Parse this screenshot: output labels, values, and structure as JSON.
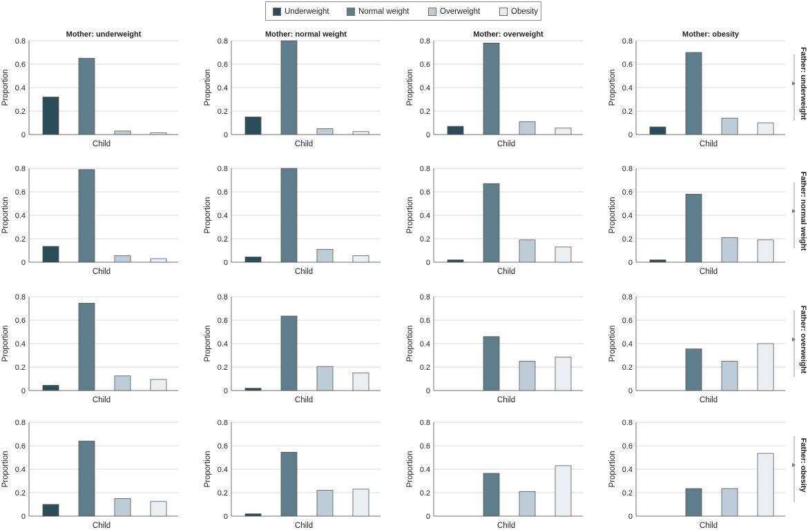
{
  "chart_data": {
    "type": "bar",
    "layout": "4x4 small multiples",
    "categories": [
      "Underweight",
      "Normal weight",
      "Overweight",
      "Obesity"
    ],
    "colors": {
      "Underweight": "#2b4c5b",
      "Normal weight": "#5f7e8c",
      "Overweight": "#bccdd7",
      "Obesity": "#e9eff3"
    },
    "ylim": [
      0,
      0.8
    ],
    "yticks": [
      "0",
      "0.2",
      "0.4",
      "0.6",
      "0.8"
    ],
    "ylabel": "Proportion",
    "xlabel": "Child",
    "column_titles": [
      "Mother: underweight",
      "Mother: normal weight",
      "Mother: overweight",
      "Mother: obesity"
    ],
    "row_titles": [
      "Father: underweight",
      "Father: normal weight",
      "Father: overweight",
      "Father: obesity"
    ],
    "panels": [
      [
        {
          "values": [
            0.32,
            0.65,
            0.03,
            0.015
          ]
        },
        {
          "values": [
            0.15,
            0.8,
            0.05,
            0.025
          ]
        },
        {
          "values": [
            0.07,
            0.78,
            0.11,
            0.055
          ]
        },
        {
          "values": [
            0.065,
            0.7,
            0.14,
            0.1
          ]
        }
      ],
      [
        {
          "values": [
            0.135,
            0.79,
            0.055,
            0.03
          ]
        },
        {
          "values": [
            0.045,
            0.8,
            0.11,
            0.055
          ]
        },
        {
          "values": [
            0.02,
            0.67,
            0.19,
            0.13
          ]
        },
        {
          "values": [
            0.02,
            0.58,
            0.21,
            0.19
          ]
        }
      ],
      [
        {
          "values": [
            0.045,
            0.745,
            0.125,
            0.095
          ]
        },
        {
          "values": [
            0.02,
            0.635,
            0.205,
            0.15
          ]
        },
        {
          "values": [
            0.0,
            0.46,
            0.25,
            0.285
          ]
        },
        {
          "values": [
            0.0,
            0.355,
            0.25,
            0.4
          ]
        }
      ],
      [
        {
          "values": [
            0.1,
            0.64,
            0.15,
            0.125
          ]
        },
        {
          "values": [
            0.02,
            0.545,
            0.22,
            0.23
          ]
        },
        {
          "values": [
            0.0,
            0.365,
            0.21,
            0.43
          ]
        },
        {
          "values": [
            0.0,
            0.235,
            0.235,
            0.535
          ]
        }
      ]
    ],
    "legend": {
      "position": "top-center",
      "entries": [
        "Underweight",
        "Normal weight",
        "Overweight",
        "Obesity"
      ]
    },
    "grid": "horizontal"
  }
}
